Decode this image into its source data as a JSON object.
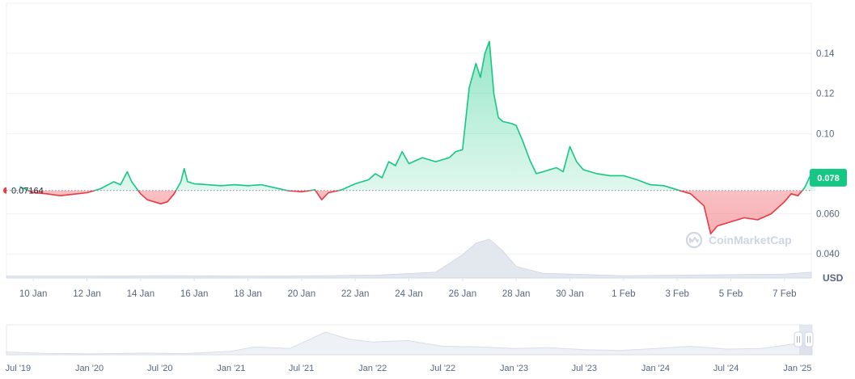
{
  "chart_data": {
    "type": "area",
    "unit": "USD",
    "baseline_value": 0.07164,
    "baseline_label": "0.07164",
    "current_value": 0.078,
    "current_label": "0.078",
    "ylim": [
      0.028,
      0.165
    ],
    "y_ticks": [
      {
        "value": 0.04,
        "label": "0.040"
      },
      {
        "value": 0.06,
        "label": "0.060"
      },
      {
        "value": 0.1,
        "label": "0.10"
      },
      {
        "value": 0.12,
        "label": "0.12"
      },
      {
        "value": 0.14,
        "label": "0.14"
      }
    ],
    "x_range": [
      "2025-01-09",
      "2025-02-08"
    ],
    "x_ticks": [
      {
        "date": "2025-01-10",
        "label": "10 Jan"
      },
      {
        "date": "2025-01-12",
        "label": "12 Jan"
      },
      {
        "date": "2025-01-14",
        "label": "14 Jan"
      },
      {
        "date": "2025-01-16",
        "label": "16 Jan"
      },
      {
        "date": "2025-01-18",
        "label": "18 Jan"
      },
      {
        "date": "2025-01-20",
        "label": "20 Jan"
      },
      {
        "date": "2025-01-22",
        "label": "22 Jan"
      },
      {
        "date": "2025-01-24",
        "label": "24 Jan"
      },
      {
        "date": "2025-01-26",
        "label": "26 Jan"
      },
      {
        "date": "2025-01-28",
        "label": "28 Jan"
      },
      {
        "date": "2025-01-30",
        "label": "30 Jan"
      },
      {
        "date": "2025-02-01",
        "label": "1 Feb"
      },
      {
        "date": "2025-02-03",
        "label": "3 Feb"
      },
      {
        "date": "2025-02-05",
        "label": "5 Feb"
      },
      {
        "date": "2025-02-07",
        "label": "7 Feb"
      }
    ],
    "series": [
      {
        "points": [
          [
            "2025-01-09T12:00",
            0.0735
          ],
          [
            "2025-01-10T00:00",
            0.0705
          ],
          [
            "2025-01-10T12:00",
            0.07
          ],
          [
            "2025-01-11T00:00",
            0.069
          ],
          [
            "2025-01-11T12:00",
            0.0698
          ],
          [
            "2025-01-12T00:00",
            0.0705
          ],
          [
            "2025-01-12T12:00",
            0.0725
          ],
          [
            "2025-01-13T00:00",
            0.076
          ],
          [
            "2025-01-13T06:00",
            0.0745
          ],
          [
            "2025-01-13T12:00",
            0.081
          ],
          [
            "2025-01-13T16:00",
            0.076
          ],
          [
            "2025-01-14T00:00",
            0.07
          ],
          [
            "2025-01-14T06:00",
            0.067
          ],
          [
            "2025-01-14T12:00",
            0.066
          ],
          [
            "2025-01-14T18:00",
            0.065
          ],
          [
            "2025-01-15T00:00",
            0.066
          ],
          [
            "2025-01-15T06:00",
            0.07
          ],
          [
            "2025-01-15T12:00",
            0.076
          ],
          [
            "2025-01-15T15:00",
            0.0825
          ],
          [
            "2025-01-15T18:00",
            0.076
          ],
          [
            "2025-01-16T00:00",
            0.075
          ],
          [
            "2025-01-16T12:00",
            0.0745
          ],
          [
            "2025-01-17T00:00",
            0.074
          ],
          [
            "2025-01-17T12:00",
            0.0745
          ],
          [
            "2025-01-18T00:00",
            0.074
          ],
          [
            "2025-01-18T12:00",
            0.0745
          ],
          [
            "2025-01-19T00:00",
            0.073
          ],
          [
            "2025-01-19T12:00",
            0.0715
          ],
          [
            "2025-01-20T00:00",
            0.071
          ],
          [
            "2025-01-20T12:00",
            0.072
          ],
          [
            "2025-01-20T18:00",
            0.067
          ],
          [
            "2025-01-21T00:00",
            0.0705
          ],
          [
            "2025-01-21T12:00",
            0.072
          ],
          [
            "2025-01-22T00:00",
            0.075
          ],
          [
            "2025-01-22T12:00",
            0.077
          ],
          [
            "2025-01-22T18:00",
            0.08
          ],
          [
            "2025-01-23T00:00",
            0.078
          ],
          [
            "2025-01-23T06:00",
            0.086
          ],
          [
            "2025-01-23T12:00",
            0.084
          ],
          [
            "2025-01-23T18:00",
            0.091
          ],
          [
            "2025-01-24T00:00",
            0.085
          ],
          [
            "2025-01-24T12:00",
            0.088
          ],
          [
            "2025-01-25T00:00",
            0.086
          ],
          [
            "2025-01-25T12:00",
            0.088
          ],
          [
            "2025-01-25T18:00",
            0.091
          ],
          [
            "2025-01-26T00:00",
            0.092
          ],
          [
            "2025-01-26T06:00",
            0.123
          ],
          [
            "2025-01-26T12:00",
            0.135
          ],
          [
            "2025-01-26T16:00",
            0.128
          ],
          [
            "2025-01-26T20:00",
            0.14
          ],
          [
            "2025-01-27T00:00",
            0.146
          ],
          [
            "2025-01-27T04:00",
            0.12
          ],
          [
            "2025-01-27T08:00",
            0.108
          ],
          [
            "2025-01-27T12:00",
            0.106
          ],
          [
            "2025-01-27T20:00",
            0.105
          ],
          [
            "2025-01-28T00:00",
            0.104
          ],
          [
            "2025-01-28T06:00",
            0.096
          ],
          [
            "2025-01-28T12:00",
            0.087
          ],
          [
            "2025-01-28T18:00",
            0.08
          ],
          [
            "2025-01-29T00:00",
            0.081
          ],
          [
            "2025-01-29T12:00",
            0.083
          ],
          [
            "2025-01-29T18:00",
            0.081
          ],
          [
            "2025-01-30T00:00",
            0.0935
          ],
          [
            "2025-01-30T06:00",
            0.086
          ],
          [
            "2025-01-30T12:00",
            0.082
          ],
          [
            "2025-01-31T00:00",
            0.08
          ],
          [
            "2025-01-31T12:00",
            0.079
          ],
          [
            "2025-02-01T00:00",
            0.079
          ],
          [
            "2025-02-01T12:00",
            0.077
          ],
          [
            "2025-02-02T00:00",
            0.0745
          ],
          [
            "2025-02-02T12:00",
            0.074
          ],
          [
            "2025-02-03T00:00",
            0.072
          ],
          [
            "2025-02-03T12:00",
            0.07
          ],
          [
            "2025-02-04T00:00",
            0.064
          ],
          [
            "2025-02-04T06:00",
            0.05
          ],
          [
            "2025-02-04T12:00",
            0.054
          ],
          [
            "2025-02-05T00:00",
            0.056
          ],
          [
            "2025-02-05T12:00",
            0.058
          ],
          [
            "2025-02-06T00:00",
            0.057
          ],
          [
            "2025-02-06T12:00",
            0.06
          ],
          [
            "2025-02-07T00:00",
            0.066
          ],
          [
            "2025-02-07T06:00",
            0.07
          ],
          [
            "2025-02-07T12:00",
            0.069
          ],
          [
            "2025-02-07T18:00",
            0.073
          ],
          [
            "2025-02-08T00:00",
            0.08
          ],
          [
            "2025-02-08T04:00",
            0.078
          ]
        ]
      }
    ],
    "volume": [
      [
        "2025-01-09",
        0.05
      ],
      [
        "2025-01-12",
        0.05
      ],
      [
        "2025-01-15",
        0.06
      ],
      [
        "2025-01-18",
        0.05
      ],
      [
        "2025-01-21",
        0.06
      ],
      [
        "2025-01-23",
        0.08
      ],
      [
        "2025-01-25",
        0.15
      ],
      [
        "2025-01-26",
        0.6
      ],
      [
        "2025-01-26T12:00",
        0.9
      ],
      [
        "2025-01-27",
        1.0
      ],
      [
        "2025-01-27T12:00",
        0.7
      ],
      [
        "2025-01-28",
        0.3
      ],
      [
        "2025-01-29",
        0.12
      ],
      [
        "2025-02-01",
        0.06
      ],
      [
        "2025-02-04",
        0.08
      ],
      [
        "2025-02-07",
        0.1
      ],
      [
        "2025-02-08",
        0.15
      ]
    ],
    "brush": {
      "x_range": [
        "2019-06-01",
        "2025-02-08"
      ],
      "ticks": [
        {
          "date": "2019-07-01",
          "label": "Jul '19"
        },
        {
          "date": "2020-01-01",
          "label": "Jan '20"
        },
        {
          "date": "2020-07-01",
          "label": "Jul '20"
        },
        {
          "date": "2021-01-01",
          "label": "Jan '21"
        },
        {
          "date": "2021-07-01",
          "label": "Jul '21"
        },
        {
          "date": "2022-01-01",
          "label": "Jan '22"
        },
        {
          "date": "2022-07-01",
          "label": "Jul '22"
        },
        {
          "date": "2023-01-01",
          "label": "Jan '23"
        },
        {
          "date": "2023-07-01",
          "label": "Jul '23"
        },
        {
          "date": "2024-01-01",
          "label": "Jan '24"
        },
        {
          "date": "2024-07-01",
          "label": "Jul '24"
        },
        {
          "date": "2025-01-01",
          "label": "Jan '25"
        }
      ],
      "series": [
        [
          "2019-06-01",
          0.1
        ],
        [
          "2019-09-01",
          0.05
        ],
        [
          "2020-01-01",
          0.03
        ],
        [
          "2020-06-01",
          0.06
        ],
        [
          "2020-09-01",
          0.04
        ],
        [
          "2021-01-01",
          0.12
        ],
        [
          "2021-03-01",
          0.28
        ],
        [
          "2021-06-01",
          0.22
        ],
        [
          "2021-09-01",
          0.8
        ],
        [
          "2021-11-01",
          0.55
        ],
        [
          "2022-01-01",
          0.45
        ],
        [
          "2022-04-01",
          0.5
        ],
        [
          "2022-07-01",
          0.3
        ],
        [
          "2022-10-01",
          0.28
        ],
        [
          "2023-01-01",
          0.22
        ],
        [
          "2023-04-01",
          0.25
        ],
        [
          "2023-07-01",
          0.18
        ],
        [
          "2023-10-01",
          0.15
        ],
        [
          "2024-01-01",
          0.22
        ],
        [
          "2024-04-01",
          0.3
        ],
        [
          "2024-07-01",
          0.2
        ],
        [
          "2024-10-01",
          0.22
        ],
        [
          "2025-01-01",
          0.4
        ],
        [
          "2025-02-08",
          0.45
        ]
      ]
    }
  },
  "watermark": {
    "text": "CoinMarketCap",
    "icon": "coinmarketcap-logo"
  },
  "colors": {
    "up": "#16c784",
    "down": "#ea3943",
    "grid": "#eff2f5",
    "axis": "#58667e"
  }
}
